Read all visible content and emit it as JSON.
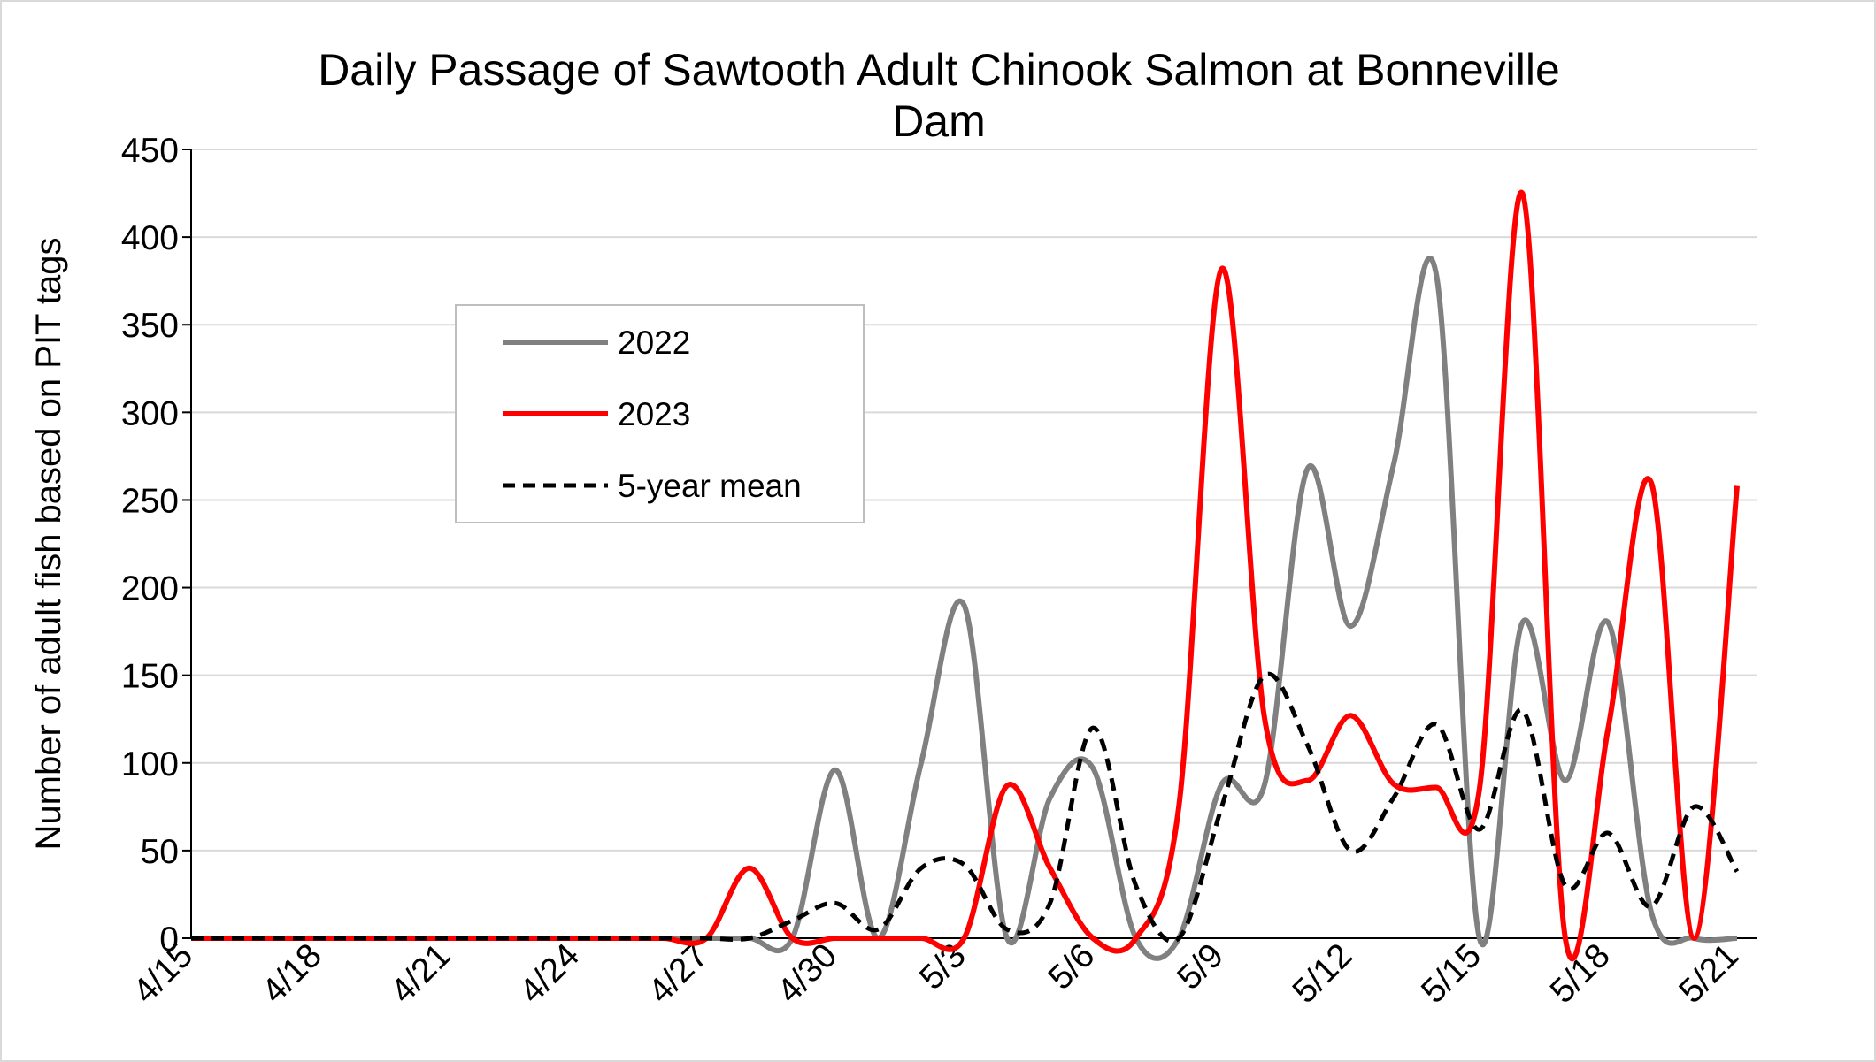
{
  "chart_data": {
    "type": "line",
    "title": "Daily Passage of Sawtooth Adult Chinook Salmon at Bonneville Dam",
    "y_label": "Number of adult fish based on PIT tags",
    "categories": [
      "4/15",
      null,
      null,
      "4/18",
      null,
      null,
      "4/21",
      null,
      null,
      "4/24",
      null,
      null,
      "4/27",
      null,
      null,
      "4/30",
      null,
      null,
      "5/3",
      null,
      null,
      "5/6",
      null,
      null,
      "5/9",
      null,
      null,
      "5/12",
      null,
      null,
      "5/15",
      null,
      null,
      "5/18",
      null,
      null,
      "5/21"
    ],
    "series": [
      {
        "name": "2022",
        "color": "#808080",
        "linestyle": "solid",
        "values": [
          0,
          0,
          0,
          0,
          0,
          0,
          0,
          0,
          0,
          0,
          0,
          0,
          0,
          0,
          0,
          96,
          0,
          100,
          190,
          0,
          80,
          97,
          0,
          0,
          88,
          88,
          268,
          178,
          270,
          378,
          0,
          180,
          90,
          180,
          15,
          0,
          0
        ]
      },
      {
        "name": "2023",
        "color": "#ff0000",
        "linestyle": "solid",
        "values": [
          0,
          0,
          0,
          0,
          0,
          0,
          0,
          0,
          0,
          0,
          0,
          0,
          0,
          40,
          0,
          0,
          0,
          0,
          0,
          87,
          40,
          0,
          0,
          75,
          382,
          125,
          90,
          127,
          88,
          86,
          85,
          425,
          0,
          120,
          260,
          0,
          258
        ]
      },
      {
        "name": "5-year mean",
        "color": "#000000",
        "linestyle": "dashed",
        "values": [
          0,
          0,
          0,
          0,
          0,
          0,
          0,
          0,
          0,
          0,
          0,
          0,
          0,
          0,
          10,
          20,
          5,
          40,
          42,
          5,
          20,
          120,
          30,
          0,
          75,
          150,
          110,
          50,
          80,
          122,
          62,
          130,
          30,
          60,
          18,
          75,
          38
        ]
      }
    ],
    "ylim": [
      0,
      450
    ],
    "yticks": [
      0,
      50,
      100,
      150,
      200,
      250,
      300,
      350,
      400,
      450
    ],
    "grid": true,
    "legend": "upper left"
  }
}
